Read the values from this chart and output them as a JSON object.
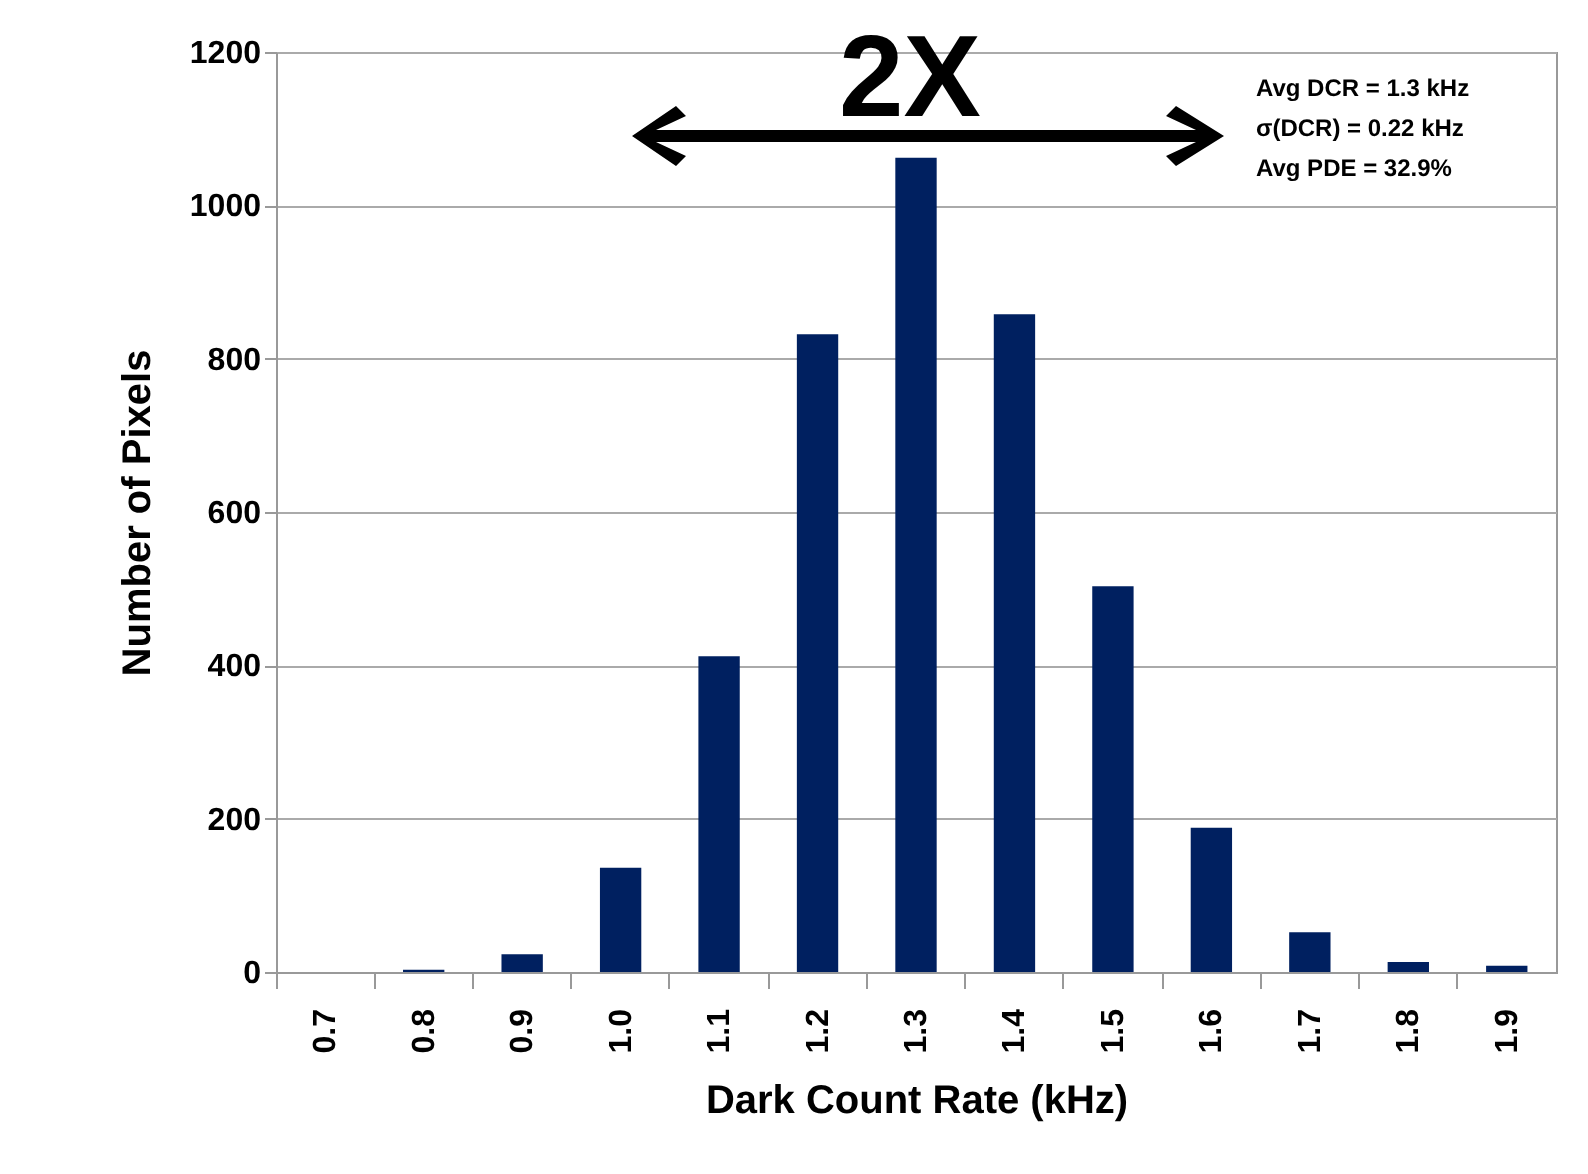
{
  "chart_data": {
    "type": "bar",
    "xlabel": "Dark Count Rate (kHz)",
    "ylabel": "Number of Pixels",
    "categories": [
      "0.7",
      "0.8",
      "0.9",
      "1.0",
      "1.1",
      "1.2",
      "1.3",
      "1.4",
      "1.5",
      "1.6",
      "1.7",
      "1.8",
      "1.9"
    ],
    "values": [
      0,
      3,
      23,
      136,
      412,
      832,
      1062,
      858,
      503,
      188,
      52,
      13,
      8
    ],
    "color": "#002060",
    "ylim": [
      0,
      1200
    ],
    "yticks": [
      0,
      200,
      400,
      600,
      800,
      1000,
      1200
    ],
    "grid": "y",
    "annotations": [
      "2X",
      "Avg DCR =  1.3   kHz",
      "σ(DCR) =  0.22  kHz",
      "Avg PDE =  32.9%"
    ]
  }
}
